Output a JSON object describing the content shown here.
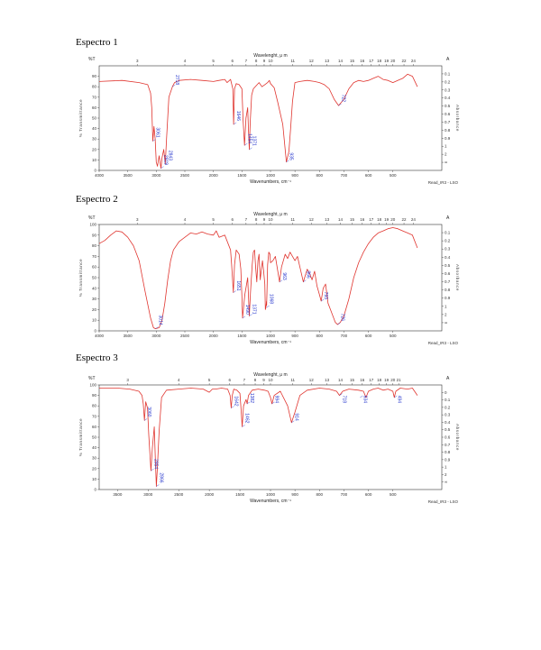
{
  "chart_data": [
    {
      "type": "line",
      "title": "Espectro 1",
      "xlabel": "Wavenumbers, cm⁻¹",
      "top_axis_label": "Wavelenght, μ m",
      "ylabel": "% Transmittance",
      "right_label": "Absorbance",
      "ylabel_top": "%T",
      "right_top": "A",
      "footer": "Read_IR3 - LSO",
      "xlim": [
        4000,
        300
      ],
      "ylim": [
        0,
        100
      ],
      "x_ticks": [
        "4000",
        "3500",
        "3000",
        "2500",
        "2000",
        "1500",
        "1000",
        "900",
        "800",
        "700",
        "600",
        "500"
      ],
      "x_tick_vals": [
        4000,
        3500,
        3000,
        2500,
        2000,
        1500,
        1000,
        900,
        800,
        700,
        600,
        500
      ],
      "top_ticks": [
        "3",
        "4",
        "5",
        "6",
        "7",
        "8",
        "9",
        "10",
        "11",
        "12",
        "13",
        "14",
        "15",
        "16",
        "17",
        "18",
        "19",
        "20",
        "22",
        "24"
      ],
      "top_tick_vals": [
        3,
        4,
        5,
        6,
        7,
        8,
        9,
        10,
        11,
        12,
        13,
        14,
        15,
        16,
        17,
        18,
        19,
        20,
        22,
        24
      ],
      "y_ticks": [
        "90",
        "80",
        "70",
        "60",
        "50",
        "40",
        "30",
        "20",
        "10",
        "0"
      ],
      "abs_ticks": [
        "0.1",
        "0.2",
        "0.3",
        "0.4",
        "0.5",
        "0.6",
        "0.7",
        "0.8",
        "0.9",
        "1",
        "2",
        "∞"
      ],
      "x": [
        4000,
        3600,
        3300,
        3150,
        3100,
        3080,
        3061,
        3040,
        3020,
        3000,
        2980,
        2950,
        2919,
        2900,
        2870,
        2843,
        2820,
        2780,
        2718,
        2680,
        2600,
        2400,
        2200,
        2000,
        1900,
        1800,
        1760,
        1700,
        1660,
        1646,
        1630,
        1600,
        1550,
        1500,
        1480,
        1454,
        1430,
        1400,
        1385,
        1371,
        1355,
        1330,
        1300,
        1250,
        1200,
        1150,
        1100,
        1050,
        1020,
        1000,
        985,
        970,
        950,
        935,
        925,
        918,
        910,
        900,
        880,
        850,
        820,
        800,
        780,
        760,
        740,
        722,
        700,
        680,
        660,
        640,
        620,
        600,
        580,
        560,
        540,
        520,
        500,
        480,
        460,
        440,
        420,
        400
      ],
      "y": [
        85,
        86,
        84,
        82,
        74,
        60,
        28,
        42,
        30,
        8,
        4,
        14,
        2,
        12,
        20,
        6,
        30,
        70,
        80,
        84,
        86,
        87,
        86,
        85,
        86,
        87,
        84,
        87,
        78,
        44,
        78,
        83,
        82,
        78,
        48,
        24,
        50,
        60,
        38,
        20,
        46,
        72,
        78,
        81,
        84,
        80,
        82,
        84,
        86,
        83,
        79,
        65,
        44,
        8,
        18,
        40,
        66,
        84,
        85,
        86,
        85,
        84,
        82,
        78,
        68,
        62,
        68,
        78,
        84,
        86,
        85,
        86,
        88,
        90,
        87,
        86,
        84,
        86,
        88,
        92,
        90,
        80
      ],
      "peak_labels": [
        {
          "label": "3061",
          "x": 3061,
          "y": 28
        },
        {
          "label": "2919",
          "x": 2919,
          "y": 2
        },
        {
          "label": "2843",
          "x": 2843,
          "y": 6
        },
        {
          "label": "2718",
          "x": 2718,
          "y": 80
        },
        {
          "label": "1646",
          "x": 1646,
          "y": 44
        },
        {
          "label": "1454",
          "x": 1454,
          "y": 24
        },
        {
          "label": "1371",
          "x": 1371,
          "y": 20
        },
        {
          "label": "935",
          "x": 935,
          "y": 8
        },
        {
          "label": "722",
          "x": 722,
          "y": 62
        }
      ]
    },
    {
      "type": "line",
      "title": "Espectro 2",
      "xlabel": "Wavenumbers, cm⁻¹",
      "top_axis_label": "Wavelenght, μ m",
      "ylabel": "% Transmittance",
      "right_label": "Absorbance",
      "ylabel_top": "%T",
      "right_top": "A",
      "footer": "Read_IR3 - LSO",
      "xlim": [
        4000,
        300
      ],
      "ylim": [
        0,
        100
      ],
      "x_ticks": [
        "4000",
        "3500",
        "3000",
        "2500",
        "2000",
        "1500",
        "1000",
        "900",
        "800",
        "700",
        "600",
        "500"
      ],
      "x_tick_vals": [
        4000,
        3500,
        3000,
        2500,
        2000,
        1500,
        1000,
        900,
        800,
        700,
        600,
        500
      ],
      "top_ticks": [
        "3",
        "4",
        "5",
        "6",
        "7",
        "8",
        "9",
        "10",
        "11",
        "12",
        "13",
        "14",
        "15",
        "16",
        "17",
        "18",
        "19",
        "20",
        "22",
        "24"
      ],
      "top_tick_vals": [
        3,
        4,
        5,
        6,
        7,
        8,
        9,
        10,
        11,
        12,
        13,
        14,
        15,
        16,
        17,
        18,
        19,
        20,
        22,
        24
      ],
      "y_ticks": [
        "100",
        "90",
        "80",
        "70",
        "60",
        "50",
        "40",
        "30",
        "20",
        "10",
        "0"
      ],
      "abs_ticks": [
        "0.1",
        "0.2",
        "0.3",
        "0.4",
        "0.5",
        "0.6",
        "0.7",
        "0.8",
        "0.9",
        "1",
        "2",
        "∞"
      ],
      "x": [
        4000,
        3900,
        3800,
        3700,
        3600,
        3500,
        3400,
        3300,
        3200,
        3100,
        3050,
        3014,
        2950,
        2900,
        2850,
        2800,
        2750,
        2700,
        2600,
        2500,
        2400,
        2300,
        2200,
        2100,
        2000,
        1950,
        1900,
        1800,
        1700,
        1680,
        1651,
        1630,
        1600,
        1550,
        1520,
        1500,
        1490,
        1450,
        1400,
        1380,
        1371,
        1350,
        1320,
        1300,
        1280,
        1260,
        1240,
        1220,
        1200,
        1180,
        1160,
        1140,
        1120,
        1100,
        1090,
        1080,
        1070,
        1068,
        1060,
        1050,
        1030,
        1010,
        1000,
        990,
        980,
        970,
        963,
        955,
        940,
        930,
        920,
        910,
        900,
        890,
        880,
        866,
        850,
        840,
        830,
        820,
        810,
        800,
        793,
        785,
        775,
        765,
        755,
        745,
        735,
        726,
        715,
        700,
        680,
        660,
        640,
        620,
        600,
        580,
        560,
        540,
        520,
        500,
        480,
        460,
        440,
        420,
        400
      ],
      "y": [
        82,
        85,
        90,
        94,
        93,
        88,
        80,
        66,
        38,
        12,
        3,
        2,
        3,
        10,
        26,
        48,
        66,
        76,
        84,
        88,
        92,
        91,
        93,
        91,
        90,
        94,
        88,
        90,
        76,
        62,
        36,
        62,
        76,
        72,
        58,
        32,
        12,
        34,
        50,
        26,
        14,
        36,
        62,
        74,
        76,
        60,
        46,
        66,
        72,
        48,
        58,
        66,
        56,
        44,
        20,
        22,
        28,
        24,
        40,
        62,
        74,
        72,
        64,
        66,
        70,
        56,
        46,
        60,
        72,
        68,
        74,
        70,
        66,
        70,
        60,
        46,
        58,
        54,
        48,
        56,
        42,
        34,
        28,
        40,
        44,
        26,
        20,
        14,
        8,
        6,
        8,
        14,
        30,
        50,
        64,
        74,
        82,
        88,
        92,
        94,
        96,
        97,
        96,
        94,
        92,
        90,
        78
      ],
      "peak_labels": [
        {
          "label": "3014",
          "x": 3014,
          "y": 2
        },
        {
          "label": "1651",
          "x": 1651,
          "y": 36
        },
        {
          "label": "1490",
          "x": 1490,
          "y": 12
        },
        {
          "label": "1371",
          "x": 1371,
          "y": 14
        },
        {
          "label": "1068",
          "x": 1068,
          "y": 22
        },
        {
          "label": "963",
          "x": 963,
          "y": 46
        },
        {
          "label": "866",
          "x": 866,
          "y": 46
        },
        {
          "label": "793",
          "x": 793,
          "y": 28
        },
        {
          "label": "726",
          "x": 726,
          "y": 6
        }
      ]
    },
    {
      "type": "line",
      "title": "Espectro 3",
      "xlabel": "Wavenumbers, cm⁻¹",
      "top_axis_label": "Wavelenght, μ m",
      "ylabel": "% Transmittance",
      "right_label": "Absorbance",
      "ylabel_top": "%T",
      "right_top": "A",
      "footer": "Read_IR3 - LSO",
      "xlim": [
        3800,
        300
      ],
      "ylim": [
        0,
        100
      ],
      "x_ticks": [
        "3500",
        "3000",
        "2500",
        "2000",
        "1500",
        "1000",
        "900",
        "800",
        "700",
        "600",
        "500"
      ],
      "x_tick_vals": [
        3500,
        3000,
        2500,
        2000,
        1500,
        1000,
        900,
        800,
        700,
        600,
        500
      ],
      "top_ticks": [
        "3",
        "4",
        "5",
        "6",
        "7",
        "8",
        "9",
        "10",
        "11",
        "12",
        "13",
        "14",
        "15",
        "16",
        "17",
        "18",
        "19",
        "20",
        "21"
      ],
      "top_tick_vals": [
        3,
        4,
        5,
        6,
        7,
        8,
        9,
        10,
        11,
        12,
        13,
        14,
        15,
        16,
        17,
        18,
        19,
        20,
        21
      ],
      "y_ticks": [
        "100",
        "90",
        "80",
        "70",
        "60",
        "50",
        "40",
        "30",
        "20",
        "10",
        "0"
      ],
      "abs_ticks": [
        "0",
        "0.1",
        "0.2",
        "0.3",
        "0.4",
        "0.5",
        "0.6",
        "0.7",
        "0.8",
        "0.9",
        "1",
        "2",
        "∞"
      ],
      "x": [
        3800,
        3500,
        3300,
        3150,
        3100,
        3080,
        3060,
        3040,
        3010,
        2990,
        2954,
        2930,
        2900,
        2880,
        2866,
        2850,
        2820,
        2780,
        2700,
        2500,
        2300,
        2100,
        2000,
        1950,
        1900,
        1800,
        1700,
        1660,
        1642,
        1625,
        1600,
        1550,
        1500,
        1480,
        1462,
        1440,
        1400,
        1382,
        1360,
        1300,
        1200,
        1100,
        1040,
        1000,
        994,
        985,
        960,
        930,
        914,
        900,
        880,
        850,
        800,
        760,
        730,
        718,
        705,
        680,
        640,
        620,
        610,
        600,
        580,
        560,
        540,
        520,
        500,
        494,
        488,
        470,
        440,
        420,
        400
      ],
      "y": [
        97,
        97,
        96,
        94,
        90,
        82,
        66,
        84,
        78,
        52,
        18,
        40,
        60,
        26,
        3,
        20,
        56,
        88,
        95,
        96,
        97,
        96,
        93,
        96,
        96,
        97,
        96,
        90,
        78,
        90,
        96,
        95,
        92,
        76,
        60,
        80,
        86,
        82,
        90,
        95,
        96,
        95,
        94,
        88,
        82,
        90,
        94,
        80,
        64,
        74,
        90,
        95,
        97,
        96,
        94,
        90,
        94,
        96,
        95,
        94,
        88,
        94,
        96,
        97,
        95,
        96,
        94,
        88,
        94,
        97,
        96,
        97,
        90
      ],
      "peak_labels": [
        {
          "label": "3060",
          "x": 3060,
          "y": 66
        },
        {
          "label": "2954",
          "x": 2954,
          "y": 18
        },
        {
          "label": "2866",
          "x": 2866,
          "y": 3
        },
        {
          "label": "1642",
          "x": 1642,
          "y": 78
        },
        {
          "label": "1462",
          "x": 1462,
          "y": 60
        },
        {
          "label": "1382",
          "x": 1382,
          "y": 82
        },
        {
          "label": "994",
          "x": 994,
          "y": 82
        },
        {
          "label": "914",
          "x": 914,
          "y": 64
        },
        {
          "label": "718",
          "x": 718,
          "y": 90
        },
        {
          "label": "634",
          "x": 634,
          "y": 88
        },
        {
          "label": "494",
          "x": 494,
          "y": 88
        }
      ]
    }
  ],
  "colors": {
    "trace": "#e0352f",
    "peak": "#2233cc",
    "axis": "#333333"
  }
}
